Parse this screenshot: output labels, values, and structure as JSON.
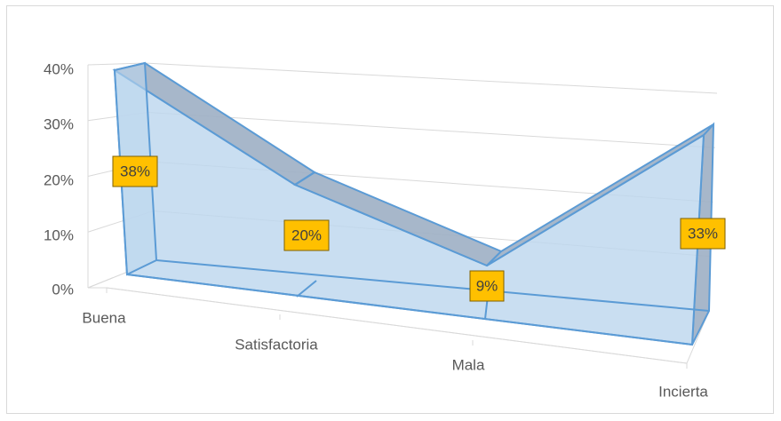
{
  "chart_data": {
    "type": "area",
    "three_d": true,
    "categories": [
      "Buena",
      "Satisfactoria",
      "Mala",
      "Incierta"
    ],
    "series": [
      {
        "values": [
          0.38,
          0.2,
          0.09,
          0.33
        ],
        "labels": [
          "38%",
          "20%",
          "9%",
          "33%"
        ]
      }
    ],
    "y_ticks": [
      "0%",
      "10%",
      "20%",
      "30%",
      "40%"
    ],
    "ylim": [
      0,
      0.4
    ],
    "grid": true,
    "legend": "none",
    "colors": {
      "fill": "#bdd7ee",
      "edge": "#5b9bd5",
      "top": "#9dafc4",
      "label_bg": "#ffc000",
      "label_border": "#7f6000",
      "label_text": "#404040",
      "axis_text": "#595959",
      "grid": "#d9d9d9"
    }
  }
}
